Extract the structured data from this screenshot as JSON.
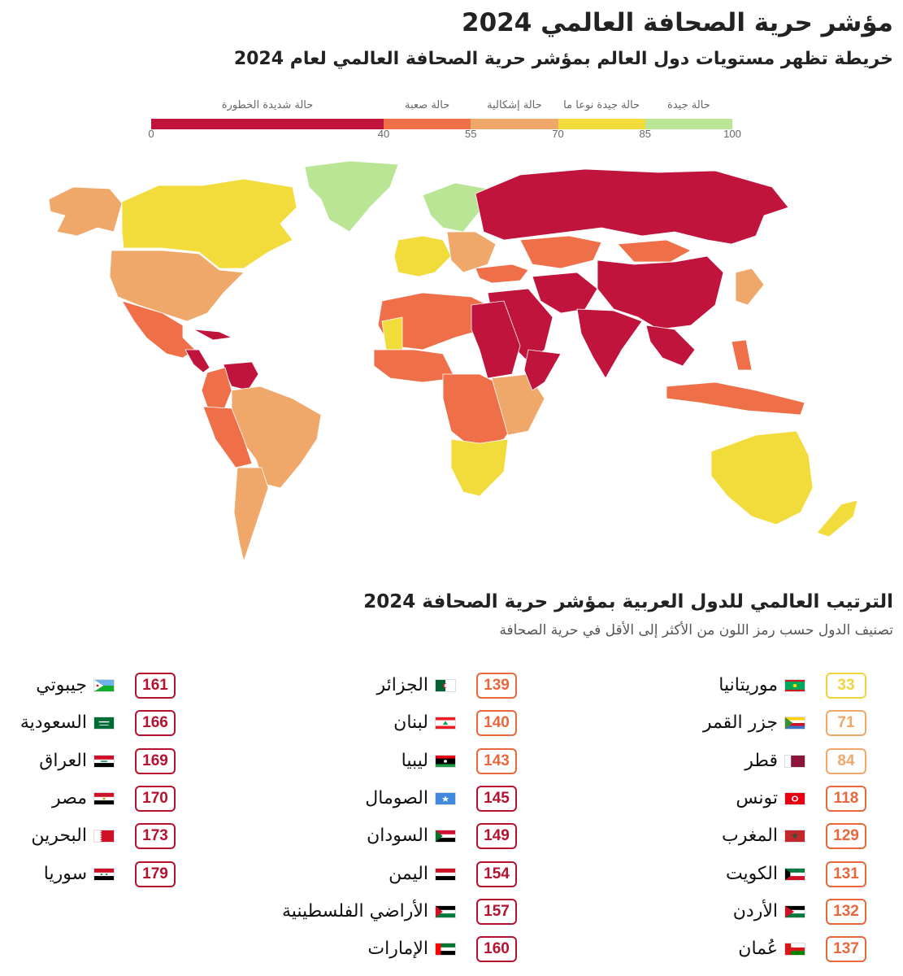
{
  "title": "مؤشر حرية الصحافة العالمي 2024",
  "subtitle": "خريطة تظهر مستويات دول العالم بمؤشر حرية الصحافة العالمي لعام 2024",
  "legend": {
    "categories": [
      {
        "label": "حالة شديدة الخطورة",
        "from": 0,
        "to": 40,
        "color": "#c0143c"
      },
      {
        "label": "حالة صعبة",
        "from": 40,
        "to": 55,
        "color": "#ee6f48"
      },
      {
        "label": "حالة إشكالية",
        "from": 55,
        "to": 70,
        "color": "#f0a86a"
      },
      {
        "label": "حالة جيدة نوعا ما",
        "from": 70,
        "to": 85,
        "color": "#f2dc3c"
      },
      {
        "label": "حالة جيدة",
        "from": 85,
        "to": 100,
        "color": "#b9e594"
      }
    ],
    "ticks": [
      "0",
      "40",
      "55",
      "70",
      "85",
      "100"
    ]
  },
  "map": {
    "regions": [
      {
        "name": "Alaska",
        "category": 2
      },
      {
        "name": "Canada",
        "category": 3
      },
      {
        "name": "Greenland",
        "category": 4
      },
      {
        "name": "United States",
        "category": 2
      },
      {
        "name": "Mexico",
        "category": 1
      },
      {
        "name": "Central America",
        "category": 0
      },
      {
        "name": "Cuba",
        "category": 0
      },
      {
        "name": "Venezuela",
        "category": 0
      },
      {
        "name": "Colombia",
        "category": 1
      },
      {
        "name": "Brazil",
        "category": 2
      },
      {
        "name": "Peru-Bolivia",
        "category": 1
      },
      {
        "name": "Argentina-Chile",
        "category": 2
      },
      {
        "name": "Nordics",
        "category": 4
      },
      {
        "name": "Western Europe",
        "category": 3
      },
      {
        "name": "Eastern Europe",
        "category": 2
      },
      {
        "name": "Russia",
        "category": 0
      },
      {
        "name": "Turkey",
        "category": 1
      },
      {
        "name": "Kazakhstan",
        "category": 1
      },
      {
        "name": "Mongolia",
        "category": 1
      },
      {
        "name": "China",
        "category": 0
      },
      {
        "name": "Middle East",
        "category": 0
      },
      {
        "name": "Iran-Afghanistan",
        "category": 0
      },
      {
        "name": "India",
        "category": 0
      },
      {
        "name": "Southeast Asia",
        "category": 0
      },
      {
        "name": "Japan",
        "category": 2
      },
      {
        "name": "Indonesia",
        "category": 1
      },
      {
        "name": "Philippines",
        "category": 1
      },
      {
        "name": "Australia",
        "category": 3
      },
      {
        "name": "New Zealand",
        "category": 3
      },
      {
        "name": "North Africa",
        "category": 1
      },
      {
        "name": "Mauritania",
        "category": 3
      },
      {
        "name": "Egypt-Sudan",
        "category": 0
      },
      {
        "name": "West Africa",
        "category": 1
      },
      {
        "name": "Central Africa",
        "category": 1
      },
      {
        "name": "East Africa",
        "category": 2
      },
      {
        "name": "Southern Africa",
        "category": 3
      },
      {
        "name": "Horn of Africa",
        "category": 0
      }
    ]
  },
  "ranking": {
    "title": "الترتيب العالمي للدول العربية بمؤشر حرية الصحافة 2024",
    "subtitle": "تصنيف الدول حسب رمز اللون من الأكثر إلى الأقل في حرية الصحافة",
    "columns": [
      [
        {
          "name": "موريتانيا",
          "rank": "33",
          "color": "#efd43a",
          "flag": "mauritania-flag-icon"
        },
        {
          "name": "جزر القمر",
          "rank": "71",
          "color": "#f0a86a",
          "flag": "comoros-flag-icon"
        },
        {
          "name": "قطر",
          "rank": "84",
          "color": "#f0a86a",
          "flag": "qatar-flag-icon"
        },
        {
          "name": "تونس",
          "rank": "118",
          "color": "#e8683e",
          "flag": "tunisia-flag-icon"
        },
        {
          "name": "المغرب",
          "rank": "129",
          "color": "#e8683e",
          "flag": "morocco-flag-icon"
        },
        {
          "name": "الكويت",
          "rank": "131",
          "color": "#e8683e",
          "flag": "kuwait-flag-icon"
        },
        {
          "name": "الأردن",
          "rank": "132",
          "color": "#e8683e",
          "flag": "jordan-flag-icon"
        },
        {
          "name": "عُمان",
          "rank": "137",
          "color": "#e8683e",
          "flag": "oman-flag-icon"
        }
      ],
      [
        {
          "name": "الجزائر",
          "rank": "139",
          "color": "#e8683e",
          "flag": "algeria-flag-icon"
        },
        {
          "name": "لبنان",
          "rank": "140",
          "color": "#e8683e",
          "flag": "lebanon-flag-icon"
        },
        {
          "name": "ليبيا",
          "rank": "143",
          "color": "#e8683e",
          "flag": "libya-flag-icon"
        },
        {
          "name": "الصومال",
          "rank": "145",
          "color": "#b5122f",
          "flag": "somalia-flag-icon"
        },
        {
          "name": "السودان",
          "rank": "149",
          "color": "#b5122f",
          "flag": "sudan-flag-icon"
        },
        {
          "name": "اليمن",
          "rank": "154",
          "color": "#b5122f",
          "flag": "yemen-flag-icon"
        },
        {
          "name": "الأراضي الفلسطينية",
          "rank": "157",
          "color": "#b5122f",
          "flag": "palestine-flag-icon"
        },
        {
          "name": "الإمارات",
          "rank": "160",
          "color": "#b5122f",
          "flag": "uae-flag-icon"
        }
      ],
      [
        {
          "name": "جيبوتي",
          "rank": "161",
          "color": "#b5122f",
          "flag": "djibouti-flag-icon"
        },
        {
          "name": "السعودية",
          "rank": "166",
          "color": "#b5122f",
          "flag": "saudi-flag-icon"
        },
        {
          "name": "العراق",
          "rank": "169",
          "color": "#b5122f",
          "flag": "iraq-flag-icon"
        },
        {
          "name": "مصر",
          "rank": "170",
          "color": "#b5122f",
          "flag": "egypt-flag-icon"
        },
        {
          "name": "البحرين",
          "rank": "173",
          "color": "#b5122f",
          "flag": "bahrain-flag-icon"
        },
        {
          "name": "سوريا",
          "rank": "179",
          "color": "#b5122f",
          "flag": "syria-flag-icon"
        }
      ]
    ]
  }
}
